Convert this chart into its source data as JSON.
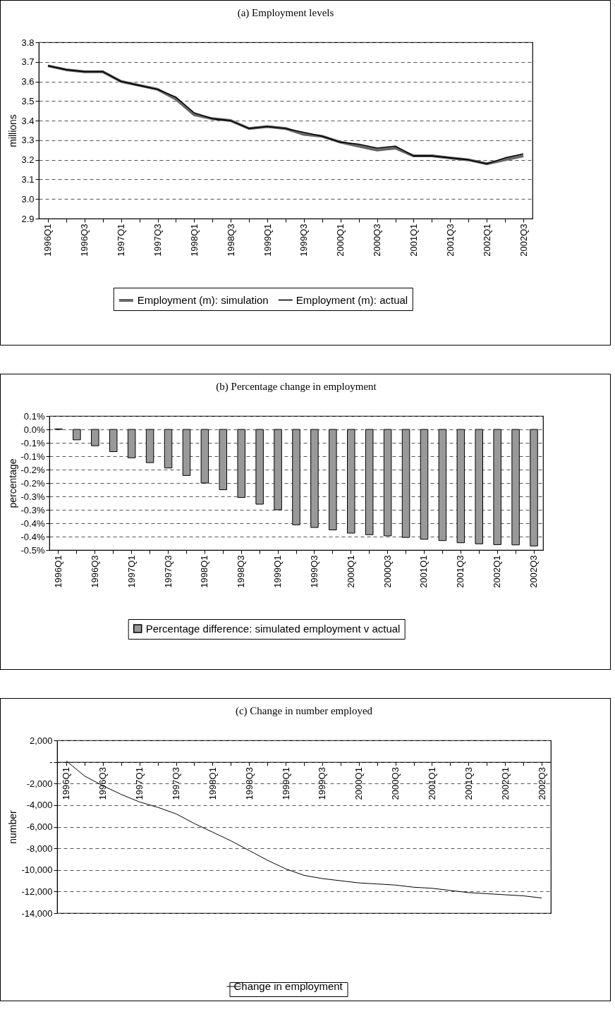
{
  "chart_data": [
    {
      "type": "line",
      "title": "(a) Employment levels",
      "ylabel": "millions",
      "categories": [
        "1996Q1",
        null,
        "1996Q3",
        null,
        "1997Q1",
        null,
        "1997Q3",
        null,
        "1998Q1",
        null,
        "1998Q3",
        null,
        "1999Q1",
        null,
        "1999Q3",
        null,
        "2000Q1",
        null,
        "2000Q3",
        null,
        "2001Q1",
        null,
        "2001Q3",
        null,
        "2002Q1",
        null,
        "2002Q3"
      ],
      "series": [
        {
          "name": "Employment (m): simulation",
          "color": "#666666",
          "values": [
            3.68,
            3.66,
            3.65,
            3.65,
            3.6,
            3.58,
            3.56,
            3.51,
            3.43,
            3.41,
            3.4,
            3.36,
            3.37,
            3.36,
            3.33,
            3.32,
            3.29,
            3.27,
            3.25,
            3.26,
            3.22,
            3.22,
            3.21,
            3.2,
            3.18,
            3.2,
            3.22
          ]
        },
        {
          "name": "Employment (m): actual",
          "color": "#000000",
          "values": [
            3.68,
            3.66,
            3.65,
            3.65,
            3.6,
            3.58,
            3.56,
            3.52,
            3.44,
            3.41,
            3.4,
            3.36,
            3.37,
            3.36,
            3.34,
            3.32,
            3.29,
            3.28,
            3.26,
            3.27,
            3.22,
            3.22,
            3.21,
            3.2,
            3.18,
            3.21,
            3.23
          ]
        }
      ],
      "ylim": [
        2.9,
        3.8
      ],
      "yticks": [
        2.9,
        {
          "value": 3,
          "label": "3.0"
        },
        3.1,
        3.2,
        3.3,
        3.4,
        3.5,
        3.6,
        3.7,
        3.8
      ],
      "grid": "y",
      "legend": "bottom"
    },
    {
      "type": "bar",
      "title": "(b) Percentage change in employment",
      "ylabel": "percentage",
      "categories": [
        "1996Q1",
        null,
        "1996Q3",
        null,
        "1997Q1",
        null,
        "1997Q3",
        null,
        "1998Q1",
        null,
        "1998Q3",
        null,
        "1999Q1",
        null,
        "1999Q3",
        null,
        "2000Q1",
        null,
        "2000Q3",
        null,
        "2001Q1",
        null,
        "2001Q3",
        null,
        "2002Q1",
        null,
        "2002Q3"
      ],
      "series": [
        {
          "name": "Percentage difference: simulated employment v actual",
          "color": "#999999",
          "values": [
            0.002,
            -0.039,
            -0.061,
            -0.083,
            -0.106,
            -0.124,
            -0.144,
            -0.172,
            -0.2,
            -0.225,
            -0.254,
            -0.279,
            -0.3,
            -0.356,
            -0.366,
            -0.375,
            -0.387,
            -0.393,
            -0.397,
            -0.403,
            -0.41,
            -0.415,
            -0.423,
            -0.427,
            -0.43,
            -0.431,
            -0.435
          ]
        }
      ],
      "ylim": [
        -0.45,
        0.05
      ],
      "yticks": [
        {
          "value": -0.45,
          "label": "-0.5%"
        },
        {
          "value": -0.4,
          "label": "-0.4%"
        },
        {
          "value": -0.35,
          "label": "-0.4%"
        },
        {
          "value": -0.3,
          "label": "-0.3%"
        },
        {
          "value": -0.25,
          "label": "-0.3%"
        },
        {
          "value": -0.2,
          "label": "-0.2%"
        },
        {
          "value": -0.15,
          "label": "-0.2%"
        },
        {
          "value": -0.1,
          "label": "-0.1%"
        },
        {
          "value": -0.05,
          "label": "-0.1%"
        },
        {
          "value": 0,
          "label": "0.0%"
        },
        {
          "value": 0.05,
          "label": "0.1%"
        }
      ],
      "grid": "y",
      "legend": "bottom"
    },
    {
      "type": "line",
      "title": "(c) Change in number employed",
      "ylabel": "number",
      "categories": [
        "1996Q1",
        null,
        "1996Q3",
        null,
        "1997Q1",
        null,
        "1997Q3",
        null,
        "1998Q1",
        null,
        "1998Q3",
        null,
        "1999Q1",
        null,
        "1999Q3",
        null,
        "2000Q1",
        null,
        "2000Q3",
        null,
        "2001Q1",
        null,
        "2001Q3",
        null,
        "2002Q1",
        null,
        "2002Q3"
      ],
      "series": [
        {
          "name": "Change in employment",
          "color": "#000000",
          "values": [
            100,
            -1300,
            -2200,
            -3000,
            -3700,
            -4200,
            -4800,
            -5700,
            -6500,
            -7300,
            -8200,
            -9100,
            -9900,
            -10500,
            -10800,
            -11000,
            -11200,
            -11300,
            -11400,
            -11600,
            -11700,
            -11900,
            -12100,
            -12200,
            -12300,
            -12400,
            -12600
          ]
        }
      ],
      "ylim": [
        -14000,
        2000
      ],
      "yticks": [
        {
          "value": -14000,
          "label": "-14,000"
        },
        {
          "value": -12000,
          "label": "-12,000"
        },
        {
          "value": -10000,
          "label": "-10,000"
        },
        {
          "value": -8000,
          "label": "-8,000"
        },
        {
          "value": -6000,
          "label": "-6,000"
        },
        {
          "value": -4000,
          "label": "-4,000"
        },
        {
          "value": -2000,
          "label": "-2,000"
        },
        {
          "value": 0,
          "label": "-"
        },
        {
          "value": 2000,
          "label": "2,000"
        }
      ],
      "grid": "y",
      "legend": "bottom"
    }
  ]
}
